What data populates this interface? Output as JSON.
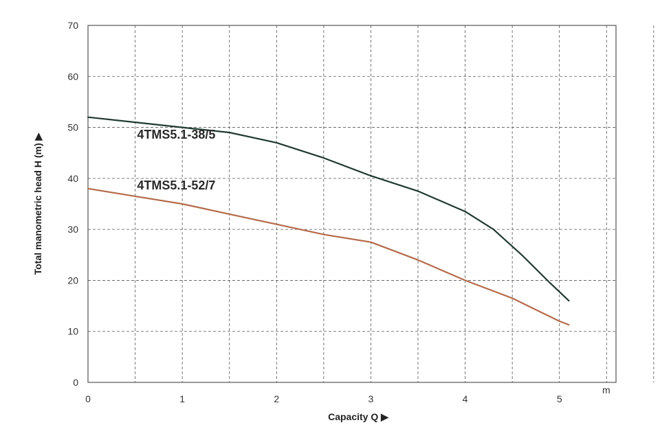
{
  "chart_data": {
    "type": "line",
    "xlabel": "Capacity Q ▶",
    "ylabel": "Total manometric head H (m) ▶",
    "x_unit": "m",
    "xlim": [
      0,
      5.6
    ],
    "ylim": [
      0,
      70
    ],
    "x_ticks": [
      0,
      1,
      2,
      3,
      4,
      5
    ],
    "y_ticks": [
      0,
      10,
      20,
      30,
      40,
      50,
      60,
      70
    ],
    "grid": true,
    "legend": "none",
    "series": [
      {
        "name": "4TMS5.1-38/5",
        "color": "#1f3a2e",
        "x": [
          0,
          0.5,
          1,
          1.5,
          2,
          2.5,
          3,
          3.5,
          4,
          4.3,
          4.6,
          4.9,
          5.1
        ],
        "y": [
          52,
          51,
          50,
          49,
          47,
          44,
          40.5,
          37.5,
          33.5,
          30,
          25,
          19.5,
          16
        ]
      },
      {
        "name": "4TMS5.1-52/7",
        "color": "#b56a4a",
        "x": [
          0,
          0.5,
          1,
          1.5,
          2,
          2.5,
          3,
          3.5,
          4,
          4.5,
          5,
          5.1
        ],
        "y": [
          38,
          36.5,
          35,
          33,
          31,
          29,
          27.5,
          24,
          20,
          16.5,
          12,
          11.3
        ]
      }
    ]
  }
}
